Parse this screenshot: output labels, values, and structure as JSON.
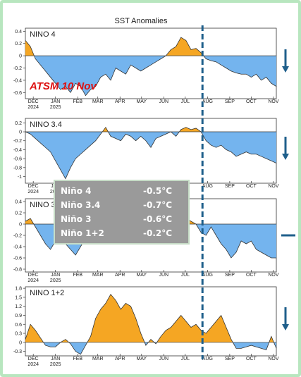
{
  "chart_data": {
    "type": "area",
    "title": "SST Anomalies",
    "annotation": "ATSM 10 Nov",
    "x": [
      "2024-11-20",
      "2024-11-27",
      "2024-12-04",
      "2024-12-11",
      "2024-12-18",
      "2024-12-25",
      "2025-01-01",
      "2025-01-08",
      "2025-01-15",
      "2025-01-22",
      "2025-01-29",
      "2025-02-05",
      "2025-02-12",
      "2025-02-19",
      "2025-02-26",
      "2025-03-05",
      "2025-03-12",
      "2025-03-19",
      "2025-03-26",
      "2025-04-02",
      "2025-04-09",
      "2025-04-16",
      "2025-04-23",
      "2025-04-30",
      "2025-05-07",
      "2025-05-14",
      "2025-05-21",
      "2025-05-28",
      "2025-06-04",
      "2025-06-11",
      "2025-06-18",
      "2025-06-25",
      "2025-07-02",
      "2025-07-09",
      "2025-07-16",
      "2025-07-23",
      "2025-07-30",
      "2025-08-06",
      "2025-08-13",
      "2025-08-20",
      "2025-08-27",
      "2025-09-03",
      "2025-09-10",
      "2025-09-17",
      "2025-09-24",
      "2025-10-01",
      "2025-10-08",
      "2025-10-15",
      "2025-10-22",
      "2025-10-29",
      "2025-11-05"
    ],
    "x_ticks": [
      {
        "month": "DEC",
        "year": "2024",
        "date": "2024-12-01"
      },
      {
        "month": "JAN",
        "year": "2025",
        "date": "2025-01-01"
      },
      {
        "month": "FEB",
        "year": "",
        "date": "2025-02-01"
      },
      {
        "month": "MAR",
        "year": "",
        "date": "2025-03-01"
      },
      {
        "month": "APR",
        "year": "",
        "date": "2025-04-01"
      },
      {
        "month": "MAY",
        "year": "",
        "date": "2025-05-01"
      },
      {
        "month": "JUN",
        "year": "",
        "date": "2025-06-01"
      },
      {
        "month": "JUL",
        "year": "",
        "date": "2025-07-01"
      },
      {
        "month": "AUG",
        "year": "",
        "date": "2025-08-01"
      },
      {
        "month": "SEP",
        "year": "",
        "date": "2025-09-01"
      },
      {
        "month": "OCT",
        "year": "",
        "date": "2025-10-01"
      },
      {
        "month": "NOV",
        "year": "",
        "date": "2025-11-01"
      }
    ],
    "marker_date": "2025-07-25",
    "positive_color": "#f5a623",
    "negative_color": "#74b4ee",
    "marker_color": "#1f5f8b",
    "panels": [
      {
        "name": "NINO 4",
        "ylim": [
          -0.7,
          0.45
        ],
        "yticks": [
          "0.4",
          "0.2",
          "0",
          "-0.2",
          "-0.4",
          "-0.6"
        ],
        "ytick_values": [
          0.4,
          0.2,
          0,
          -0.2,
          -0.4,
          -0.6
        ],
        "values": [
          0.25,
          0.15,
          -0.05,
          -0.15,
          -0.25,
          -0.35,
          -0.45,
          -0.55,
          -0.5,
          -0.6,
          -0.45,
          -0.5,
          -0.65,
          -0.55,
          -0.5,
          -0.35,
          -0.3,
          -0.4,
          -0.2,
          -0.25,
          -0.3,
          -0.15,
          -0.2,
          -0.25,
          -0.2,
          -0.15,
          -0.1,
          -0.05,
          0.0,
          0.1,
          0.15,
          0.3,
          0.25,
          0.1,
          0.12,
          0.05,
          -0.05,
          -0.08,
          -0.1,
          -0.15,
          -0.2,
          -0.25,
          -0.28,
          -0.3,
          -0.3,
          -0.35,
          -0.3,
          -0.4,
          -0.35,
          -0.45,
          -0.5
        ],
        "trend": "down"
      },
      {
        "name": "NINO 3.4",
        "ylim": [
          -1.15,
          0.3
        ],
        "yticks": [
          "0.2",
          "0",
          "-0.2",
          "-0.4",
          "-0.6",
          "-0.8",
          "-1"
        ],
        "ytick_values": [
          0.2,
          0,
          -0.2,
          -0.4,
          -0.6,
          -0.8,
          -1
        ],
        "values": [
          0.0,
          -0.05,
          -0.15,
          -0.25,
          -0.35,
          -0.45,
          -0.65,
          -0.85,
          -1.05,
          -0.8,
          -0.6,
          -0.5,
          -0.4,
          -0.3,
          -0.2,
          -0.05,
          0.1,
          -0.1,
          -0.15,
          -0.2,
          -0.05,
          -0.1,
          -0.2,
          -0.1,
          -0.2,
          -0.35,
          -0.15,
          -0.1,
          -0.05,
          0.0,
          -0.1,
          0.05,
          0.1,
          0.05,
          0.08,
          0.0,
          -0.2,
          -0.3,
          -0.35,
          -0.3,
          -0.4,
          -0.45,
          -0.55,
          -0.5,
          -0.45,
          -0.5,
          -0.5,
          -0.55,
          -0.6,
          -0.65,
          -0.7
        ],
        "trend": "down"
      },
      {
        "name": "NINO 3",
        "ylim": [
          -0.85,
          0.45
        ],
        "yticks": [
          "0.4",
          "0.2",
          "0",
          "-0.2",
          "-0.4",
          "-0.6",
          "-0.8"
        ],
        "ytick_values": [
          0.4,
          0.2,
          0,
          -0.2,
          -0.4,
          -0.6,
          -0.8
        ],
        "values": [
          0.05,
          0.1,
          -0.05,
          -0.2,
          -0.35,
          -0.45,
          -0.3,
          -0.25,
          -0.35,
          -0.45,
          -0.55,
          -0.4,
          -0.25,
          -0.1,
          -0.05,
          -0.2,
          -0.3,
          -0.25,
          -0.15,
          -0.1,
          -0.2,
          -0.15,
          -0.25,
          -0.35,
          -0.3,
          -0.25,
          -0.15,
          -0.05,
          -0.1,
          0.05,
          0.1,
          0.15,
          0.1,
          0.05,
          0.0,
          -0.15,
          -0.2,
          -0.05,
          -0.2,
          -0.35,
          -0.45,
          -0.6,
          -0.5,
          -0.3,
          -0.35,
          -0.3,
          -0.45,
          -0.5,
          -0.55,
          -0.6,
          -0.6
        ],
        "trend": "flat"
      },
      {
        "name": "NINO 1+2",
        "ylim": [
          -0.45,
          1.85
        ],
        "yticks": [
          "1.8",
          "1.5",
          "1.2",
          "0.9",
          "0.6",
          "0.3",
          "0",
          "-0.3"
        ],
        "ytick_values": [
          1.8,
          1.5,
          1.2,
          0.9,
          0.6,
          0.3,
          0,
          -0.3
        ],
        "values": [
          0.1,
          0.6,
          0.4,
          0.15,
          -0.1,
          -0.15,
          -0.15,
          0.0,
          0.1,
          -0.05,
          -0.3,
          -0.4,
          -0.1,
          0.2,
          0.8,
          1.1,
          1.3,
          1.6,
          1.4,
          1.1,
          1.3,
          1.2,
          0.8,
          0.3,
          -0.1,
          0.1,
          -0.05,
          0.2,
          0.4,
          0.5,
          0.7,
          0.9,
          0.7,
          0.5,
          0.6,
          0.4,
          0.3,
          0.5,
          0.7,
          0.9,
          0.5,
          0.1,
          -0.2,
          -0.2,
          -0.15,
          -0.1,
          -0.15,
          -0.2,
          -0.25,
          0.2,
          -0.2
        ],
        "trend": "down"
      }
    ]
  },
  "summary": {
    "rows": [
      {
        "label": "Niño 4",
        "value": "-0.5°C"
      },
      {
        "label": "Niño 3.4",
        "value": "-0.7°C"
      },
      {
        "label": "Niño 3",
        "value": "-0.6°C"
      },
      {
        "label": "Niño 1+2",
        "value": "-0.2°C"
      }
    ]
  }
}
